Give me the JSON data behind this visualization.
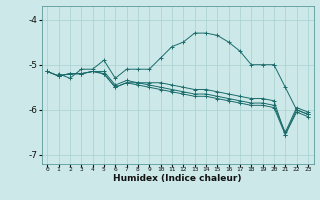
{
  "title": "",
  "xlabel": "Humidex (Indice chaleur)",
  "ylabel": "",
  "bg_color": "#cde8e8",
  "line_color": "#1a6b6b",
  "xlim": [
    -0.5,
    23.5
  ],
  "ylim": [
    -7.2,
    -3.7
  ],
  "yticks": [
    -7,
    -6,
    -5,
    -4
  ],
  "xtick_labels": [
    "0",
    "1",
    "2",
    "3",
    "4",
    "5",
    "6",
    "7",
    "8",
    "9",
    "10",
    "11",
    "12",
    "13",
    "14",
    "15",
    "16",
    "17",
    "18",
    "19",
    "20",
    "21",
    "22",
    "23"
  ],
  "xticks": [
    0,
    1,
    2,
    3,
    4,
    5,
    6,
    7,
    8,
    9,
    10,
    11,
    12,
    13,
    14,
    15,
    16,
    17,
    18,
    19,
    20,
    21,
    22,
    23
  ],
  "lines": [
    [
      null,
      -5.2,
      -5.3,
      -5.1,
      -5.1,
      -4.9,
      -5.3,
      -5.1,
      -5.1,
      -5.1,
      -4.85,
      -4.6,
      -4.5,
      -4.3,
      -4.3,
      -4.35,
      -4.5,
      -4.7,
      -5.0,
      -5.0,
      -5.0,
      null,
      null,
      null
    ],
    [
      null,
      null,
      null,
      null,
      null,
      null,
      null,
      null,
      null,
      null,
      null,
      null,
      null,
      null,
      null,
      null,
      null,
      null,
      null,
      null,
      -5.0,
      -5.5,
      -6.0,
      -6.1
    ],
    [
      -5.15,
      -5.25,
      -5.2,
      -5.2,
      -5.15,
      -5.2,
      -5.5,
      -5.4,
      -5.4,
      -5.4,
      -5.4,
      -5.45,
      -5.5,
      -5.55,
      -5.55,
      -5.6,
      -5.65,
      -5.7,
      -5.75,
      -5.75,
      -5.8,
      -6.55,
      -6.0,
      -6.1
    ],
    [
      -5.15,
      -5.25,
      -5.2,
      -5.2,
      -5.15,
      -5.2,
      -5.5,
      -5.4,
      -5.45,
      -5.5,
      -5.55,
      -5.6,
      -5.65,
      -5.7,
      -5.7,
      -5.75,
      -5.8,
      -5.85,
      -5.9,
      -5.9,
      -5.95,
      -6.55,
      -6.05,
      -6.15
    ],
    [
      -5.15,
      -5.25,
      -5.2,
      -5.2,
      -5.15,
      -5.15,
      -5.45,
      -5.35,
      -5.4,
      -5.45,
      -5.5,
      -5.55,
      -5.6,
      -5.65,
      -5.65,
      -5.7,
      -5.75,
      -5.8,
      -5.85,
      -5.85,
      -5.9,
      -6.5,
      -5.95,
      -6.05
    ]
  ],
  "grid_color": "#a8d0d0",
  "marker": "+"
}
